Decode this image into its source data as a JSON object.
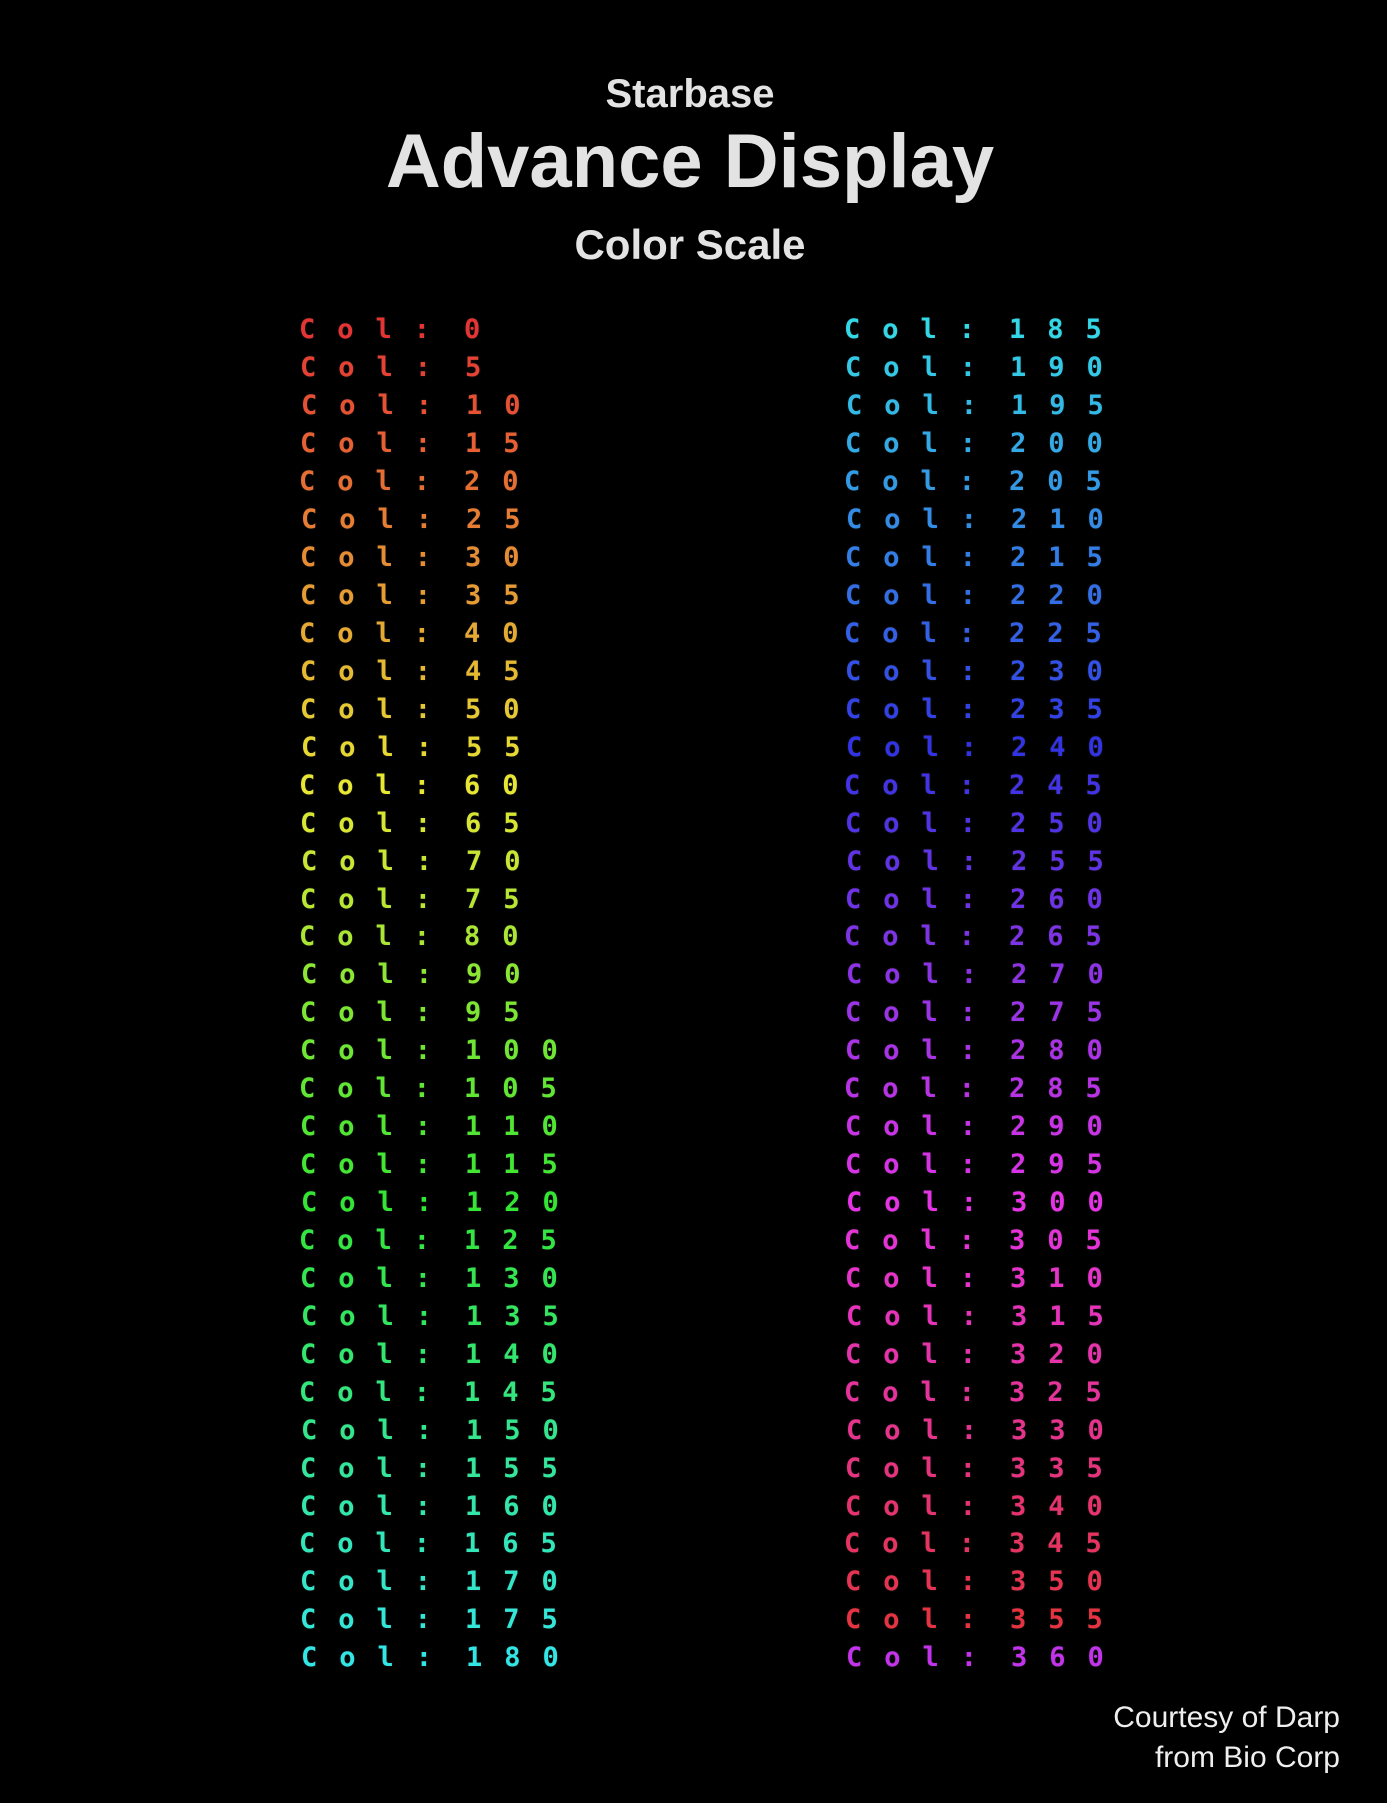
{
  "title": {
    "line1": "Starbase",
    "line2": "Advance Display",
    "line3": "Color Scale"
  },
  "row_label": "Col:",
  "columns": {
    "left": {
      "rows": [
        {
          "value": "0",
          "color": "#e63333"
        },
        {
          "value": "5",
          "color": "#e64233"
        },
        {
          "value": "10",
          "color": "#e65133"
        },
        {
          "value": "15",
          "color": "#e66033"
        },
        {
          "value": "20",
          "color": "#e66e33"
        },
        {
          "value": "25",
          "color": "#e67d33"
        },
        {
          "value": "30",
          "color": "#e68c33"
        },
        {
          "value": "35",
          "color": "#e69b33"
        },
        {
          "value": "40",
          "color": "#e6aa33"
        },
        {
          "value": "45",
          "color": "#e6b933"
        },
        {
          "value": "50",
          "color": "#e6c833"
        },
        {
          "value": "55",
          "color": "#e6d733"
        },
        {
          "value": "60",
          "color": "#e6e633"
        },
        {
          "value": "65",
          "color": "#d7e633"
        },
        {
          "value": "70",
          "color": "#c8e633"
        },
        {
          "value": "75",
          "color": "#b9e633"
        },
        {
          "value": "80",
          "color": "#aae633"
        },
        {
          "value": "90",
          "color": "#8ce633"
        },
        {
          "value": "95",
          "color": "#7de633"
        },
        {
          "value": "100",
          "color": "#6ee633"
        },
        {
          "value": "105",
          "color": "#60e633"
        },
        {
          "value": "110",
          "color": "#51e633"
        },
        {
          "value": "115",
          "color": "#42e633"
        },
        {
          "value": "120",
          "color": "#33e633"
        },
        {
          "value": "125",
          "color": "#33e642"
        },
        {
          "value": "130",
          "color": "#33e651"
        },
        {
          "value": "135",
          "color": "#33e660"
        },
        {
          "value": "140",
          "color": "#33e66e"
        },
        {
          "value": "145",
          "color": "#33e67d"
        },
        {
          "value": "150",
          "color": "#33e68c"
        },
        {
          "value": "155",
          "color": "#33e69b"
        },
        {
          "value": "160",
          "color": "#33e6aa"
        },
        {
          "value": "165",
          "color": "#33e6b9"
        },
        {
          "value": "170",
          "color": "#33e6c8"
        },
        {
          "value": "175",
          "color": "#33e6d7"
        },
        {
          "value": "180",
          "color": "#33e6e6"
        }
      ]
    },
    "right": {
      "rows": [
        {
          "value": "185",
          "color": "#33d7e6"
        },
        {
          "value": "190",
          "color": "#33c8e6"
        },
        {
          "value": "195",
          "color": "#33b9e6"
        },
        {
          "value": "200",
          "color": "#33aae6"
        },
        {
          "value": "205",
          "color": "#339be6"
        },
        {
          "value": "210",
          "color": "#338ce6"
        },
        {
          "value": "215",
          "color": "#337de6"
        },
        {
          "value": "220",
          "color": "#336ee6"
        },
        {
          "value": "225",
          "color": "#3360e6"
        },
        {
          "value": "230",
          "color": "#3351e6"
        },
        {
          "value": "235",
          "color": "#3342e6"
        },
        {
          "value": "240",
          "color": "#3333e6"
        },
        {
          "value": "245",
          "color": "#4233e6"
        },
        {
          "value": "250",
          "color": "#5133e6"
        },
        {
          "value": "255",
          "color": "#6033e6"
        },
        {
          "value": "260",
          "color": "#6e33e6"
        },
        {
          "value": "265",
          "color": "#7d33e6"
        },
        {
          "value": "270",
          "color": "#8c33e6"
        },
        {
          "value": "275",
          "color": "#9b33e6"
        },
        {
          "value": "280",
          "color": "#aa33e6"
        },
        {
          "value": "285",
          "color": "#b933e6"
        },
        {
          "value": "290",
          "color": "#c833e6"
        },
        {
          "value": "295",
          "color": "#d733e6"
        },
        {
          "value": "300",
          "color": "#e633e6"
        },
        {
          "value": "305",
          "color": "#e633d7"
        },
        {
          "value": "310",
          "color": "#e633c8"
        },
        {
          "value": "315",
          "color": "#e633b9"
        },
        {
          "value": "320",
          "color": "#e633aa"
        },
        {
          "value": "325",
          "color": "#e6339b"
        },
        {
          "value": "330",
          "color": "#e6338c"
        },
        {
          "value": "335",
          "color": "#e6337d"
        },
        {
          "value": "340",
          "color": "#e6336e"
        },
        {
          "value": "345",
          "color": "#e63360"
        },
        {
          "value": "350",
          "color": "#e63351"
        },
        {
          "value": "355",
          "color": "#e63342"
        },
        {
          "value": "360",
          "color": "#c433ec"
        }
      ]
    }
  },
  "footer": {
    "line1": "Courtesy of Darp",
    "line2": "from Bio Corp"
  },
  "colors": {
    "background": "#000000",
    "title_text": "#e3e3e3",
    "footer_text": "#efefef"
  }
}
